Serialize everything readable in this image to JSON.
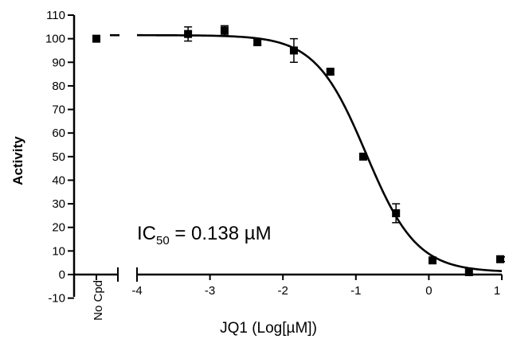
{
  "chart_data": {
    "type": "scatter",
    "ylabel": "Activity",
    "xlabel": "JQ1 (Log[µM])",
    "x_ticks": [
      "-4",
      "-3",
      "-2",
      "-1",
      "0",
      "1"
    ],
    "y_ticks": [
      "-10",
      "0",
      "10",
      "20",
      "30",
      "40",
      "50",
      "60",
      "70",
      "80",
      "90",
      "100",
      "110"
    ],
    "xlim": [
      -4,
      1
    ],
    "ylim": [
      -10,
      110
    ],
    "no_compound": {
      "label": "No Cpd",
      "value": 100
    },
    "points": [
      {
        "x": -3.3,
        "y": 102,
        "err": 3
      },
      {
        "x": -2.8,
        "y": 103.5,
        "err": 2
      },
      {
        "x": -2.35,
        "y": 98.5,
        "err": 1
      },
      {
        "x": -1.85,
        "y": 95,
        "err": 5
      },
      {
        "x": -1.35,
        "y": 86,
        "err": 1
      },
      {
        "x": -0.9,
        "y": 50,
        "err": 1
      },
      {
        "x": -0.45,
        "y": 26,
        "err": 4
      },
      {
        "x": 0.05,
        "y": 6,
        "err": 1
      },
      {
        "x": 0.55,
        "y": 1,
        "err": 0.5
      },
      {
        "x": 1.0,
        "y": 6.5,
        "err": 1
      }
    ],
    "fit": {
      "top": 101.5,
      "bottom": 1,
      "log_ic50": -0.86,
      "hill": 1.25
    },
    "annotation": {
      "prefix": "IC",
      "subscript": "50",
      "suffix": " = 0.138 µM"
    }
  }
}
